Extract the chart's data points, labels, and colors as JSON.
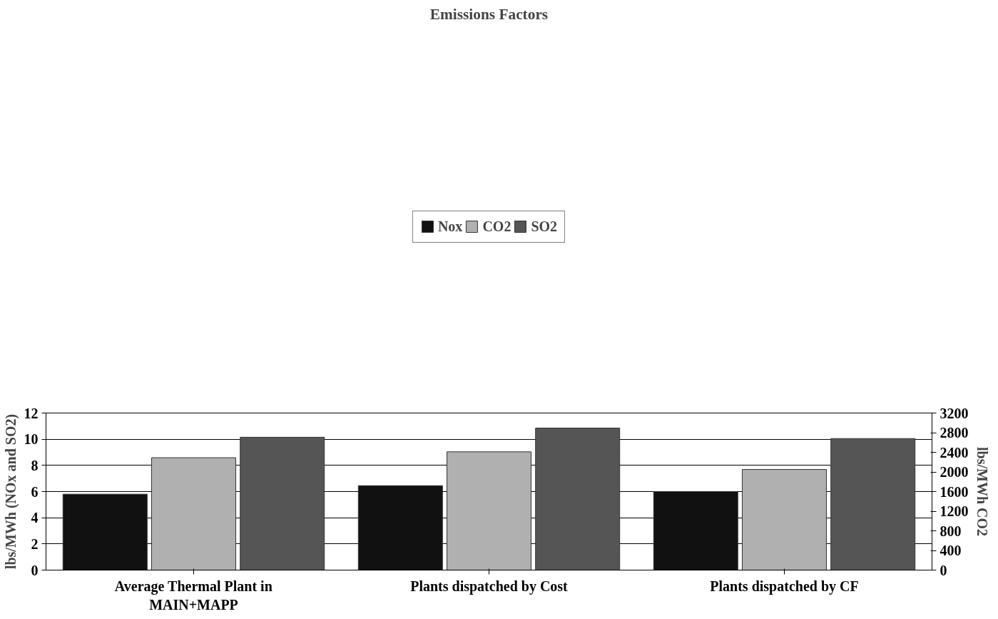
{
  "chart_data": {
    "type": "bar",
    "title": "Emissions Factors",
    "categories": [
      "Average Thermal Plant in\nMAIN+MAPP",
      "Plants dispatched by Cost",
      "Plants dispatched by CF"
    ],
    "series": [
      {
        "name": "Nox",
        "color": "#111111",
        "values": [
          5.8,
          6.45,
          6.0
        ]
      },
      {
        "name": "CO2",
        "color": "#b0b0b0",
        "values": [
          2290,
          2410,
          2050
        ],
        "axis": "y2"
      },
      {
        "name": "SO2",
        "color": "#555555",
        "values": [
          10.15,
          10.85,
          10.05
        ]
      }
    ],
    "ylabel": "lbs/MWh (NOx and SO2)",
    "y2label": "lbs/MWh CO2",
    "ylim": [
      0,
      12
    ],
    "yticks": [
      0,
      2,
      4,
      6,
      8,
      10,
      12
    ],
    "y2lim": [
      0,
      3200
    ],
    "y2ticks": [
      0,
      400,
      800,
      1200,
      1600,
      2000,
      2400,
      2800,
      3200
    ],
    "grid": "y",
    "legend": "top"
  }
}
